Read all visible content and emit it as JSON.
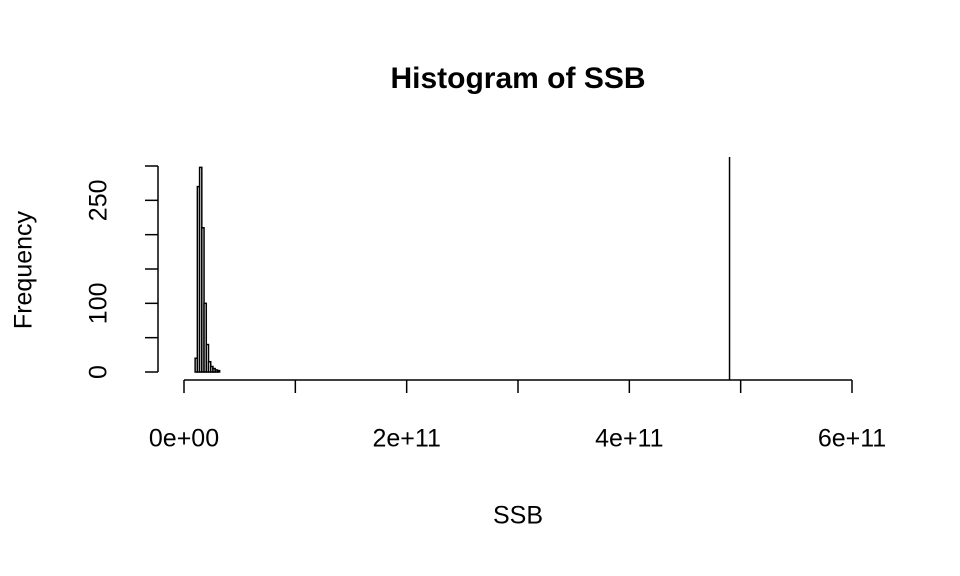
{
  "chart_data": {
    "type": "histogram",
    "title": "Histogram of SSB",
    "x_label": "SSB",
    "y_label": "Frequency",
    "bins": [
      10000000000,
      12000000000,
      14000000000,
      16000000000,
      18000000000,
      20000000000,
      22000000000,
      24000000000,
      26000000000,
      28000000000,
      30000000000,
      32000000000
    ],
    "values": [
      20,
      270,
      298,
      210,
      100,
      40,
      15,
      8,
      5,
      3,
      2
    ],
    "color": "#000000",
    "reference_line_x": 490000000000,
    "xlim": [
      0,
      600000000000
    ],
    "xticks": [
      {
        "value": 0,
        "label": "0e+00"
      },
      {
        "value": 100000000000,
        "label": null
      },
      {
        "value": 200000000000,
        "label": "2e+11"
      },
      {
        "value": 300000000000,
        "label": null
      },
      {
        "value": 400000000000,
        "label": "4e+11"
      },
      {
        "value": 500000000000,
        "label": null
      },
      {
        "value": 600000000000,
        "label": "6e+11"
      }
    ],
    "ylim": [
      0,
      300
    ],
    "yticks": [
      0,
      {
        "value": 50,
        "label": null
      },
      100,
      {
        "value": 150,
        "label": null
      },
      {
        "value": 200,
        "label": null
      },
      250,
      {
        "value": 300,
        "label": null
      }
    ],
    "grid": false
  }
}
